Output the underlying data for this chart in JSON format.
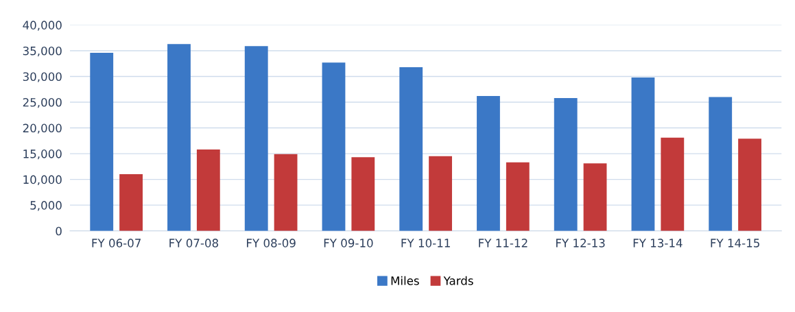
{
  "chart_data": {
    "type": "bar",
    "categories": [
      "FY 06-07",
      "FY 07-08",
      "FY 08-09",
      "FY 09-10",
      "FY 10-11",
      "FY 11-12",
      "FY 12-13",
      "FY 13-14",
      "FY 14-15"
    ],
    "series": [
      {
        "name": "Miles",
        "color": "#3b78c6",
        "values": [
          34600,
          36300,
          35900,
          32700,
          31800,
          26200,
          25800,
          29800,
          26000
        ]
      },
      {
        "name": "Yards",
        "color": "#c23a3a",
        "values": [
          11000,
          15800,
          14900,
          14300,
          14500,
          13300,
          13100,
          18100,
          17900
        ]
      }
    ],
    "ylim": [
      0,
      40000
    ],
    "yticks": [
      {
        "value": 0,
        "label": "0"
      },
      {
        "value": 5000,
        "label": "5,000"
      },
      {
        "value": 10000,
        "label": "10,000"
      },
      {
        "value": 15000,
        "label": "15,000"
      },
      {
        "value": 20000,
        "label": "20,000"
      },
      {
        "value": 25000,
        "label": "25,000"
      },
      {
        "value": 30000,
        "label": "30,000"
      },
      {
        "value": 35000,
        "label": "35,000"
      },
      {
        "value": 40000,
        "label": "40,000"
      }
    ],
    "grid": "y",
    "legend": "bottom"
  }
}
